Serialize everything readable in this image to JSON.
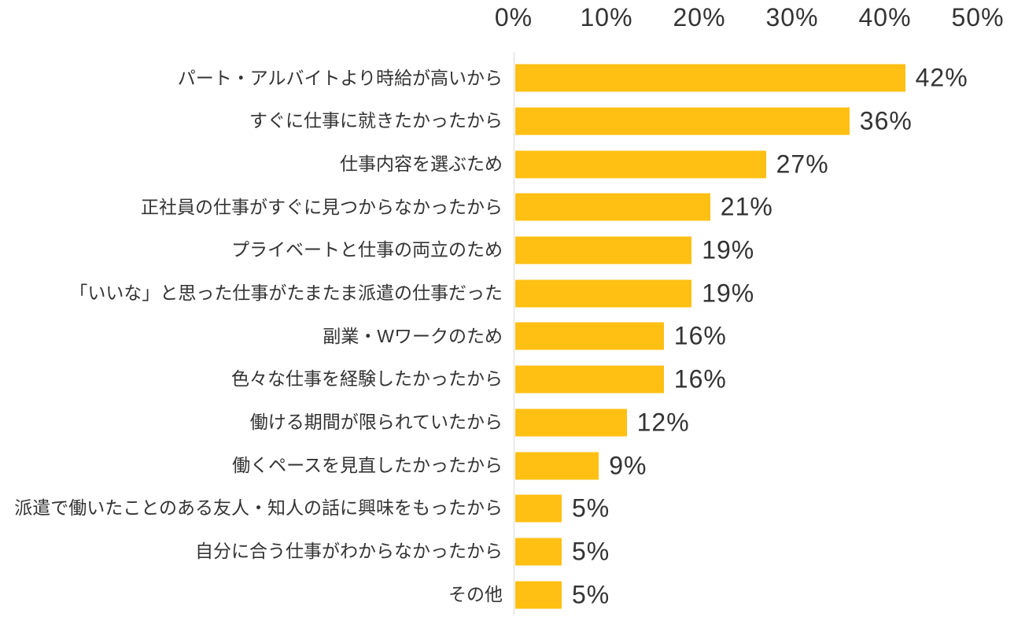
{
  "chart_data": {
    "type": "bar",
    "orientation": "horizontal",
    "title": "",
    "xlabel": "",
    "ylabel": "",
    "categories": [
      "パート・アルバイトより時給が高いから",
      "すぐに仕事に就きたかったから",
      "仕事内容を選ぶため",
      "正社員の仕事がすぐに見つからなかったから",
      "プライベートと仕事の両立のため",
      "「いいな」と思った仕事がたまたま派遣の仕事だった",
      "副業・Wワークのため",
      "色々な仕事を経験したかったから",
      "働ける期間が限られていたから",
      "働くペースを見直したかったから",
      "派遣で働いたことのある友人・知人の話に興味をもったから",
      "自分に合う仕事がわからなかったから",
      "その他"
    ],
    "values": [
      42,
      36,
      27,
      21,
      19,
      19,
      16,
      16,
      12,
      9,
      5,
      5,
      5
    ],
    "value_labels": [
      "42%",
      "36%",
      "27%",
      "21%",
      "19%",
      "19%",
      "16%",
      "16%",
      "12%",
      "9%",
      "5%",
      "5%",
      "5%"
    ],
    "axis": {
      "position": "top",
      "min": 0,
      "max": 50,
      "ticks": [
        "0%",
        "10%",
        "20%",
        "30%",
        "40%",
        "50%"
      ],
      "grid": false
    },
    "legend": "none",
    "bar_color": "#FFC013",
    "axis_line_color": "#D9D9D9",
    "text_color": "#333333"
  }
}
